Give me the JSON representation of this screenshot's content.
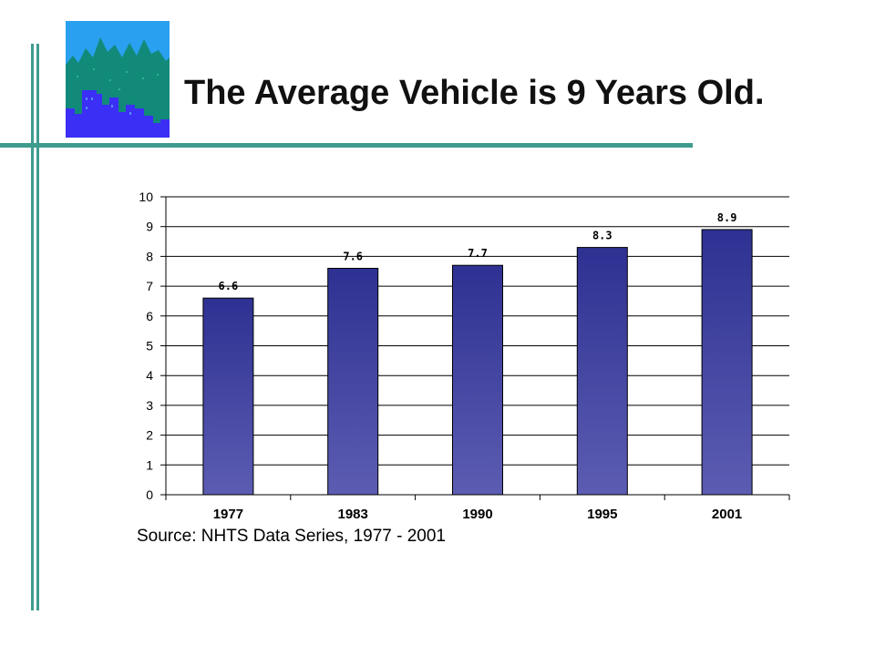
{
  "slide": {
    "title": "The Average Vehicle is 9 Years Old.",
    "source": "Source:  NHTS Data Series, 1977 - 2001"
  },
  "logo": {
    "icon": "city-skyline-logo-icon",
    "colors": {
      "sky": "#2aa0f0",
      "trees": "#128a7a",
      "buildings": "#3b2ef5"
    }
  },
  "colors": {
    "accent_line": "#3f9b8e",
    "bar_top": "#2e3192",
    "bar_bottom": "#5c5cb2",
    "bar_outline": "#000000",
    "grid": "#000000"
  },
  "chart_data": {
    "type": "bar",
    "categories": [
      "1977",
      "1983",
      "1990",
      "1995",
      "2001"
    ],
    "values": [
      6.6,
      7.6,
      7.7,
      8.3,
      8.9
    ],
    "data_labels": [
      "6.6",
      "7.6",
      "7.7",
      "8.3",
      "8.9"
    ],
    "title": "",
    "xlabel": "",
    "ylabel": "",
    "ylim": [
      0,
      10
    ],
    "yticks": [
      0,
      1,
      2,
      3,
      4,
      5,
      6,
      7,
      8,
      9,
      10
    ],
    "grid": true,
    "legend": "none"
  }
}
